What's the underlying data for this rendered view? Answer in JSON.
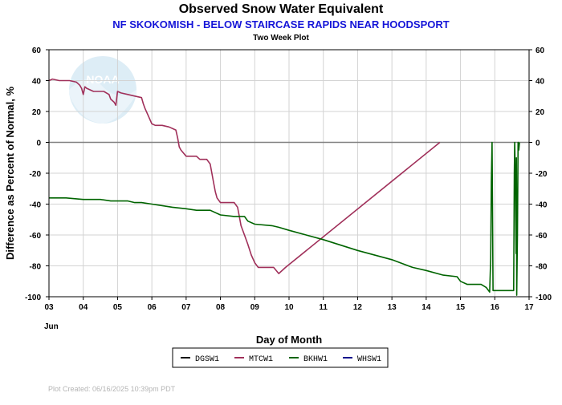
{
  "chart_data": {
    "type": "line",
    "title": "Observed Snow Water Equivalent",
    "subtitle": "NF SKOKOMISH - BELOW STAIRCASE RAPIDS NEAR HOODSPORT",
    "subsubtitle": "Two Week Plot",
    "xlabel": "Day of Month",
    "ylabel": "Difference as Percent of Normal, %",
    "x_month_label": "Jun",
    "xlim": [
      3,
      17
    ],
    "ylim": [
      -100,
      60
    ],
    "x_ticks": [
      "03",
      "04",
      "05",
      "06",
      "07",
      "08",
      "09",
      "10",
      "11",
      "12",
      "13",
      "14",
      "15",
      "16",
      "17"
    ],
    "y_ticks": [
      "60",
      "40",
      "20",
      "0",
      "-20",
      "-40",
      "-60",
      "-80",
      "-100"
    ],
    "grid": true,
    "legend_position": "bottom",
    "footer": "Plot Created: 06/16/2025 10:39pm PDT",
    "watermark": "NOAA",
    "series": [
      {
        "name": "DGSW1",
        "color": "#000000",
        "points": []
      },
      {
        "name": "MTCW1",
        "color": "#a0305a",
        "points": [
          [
            3.0,
            40
          ],
          [
            3.1,
            41
          ],
          [
            3.3,
            40
          ],
          [
            3.6,
            40
          ],
          [
            3.8,
            39
          ],
          [
            3.9,
            37
          ],
          [
            3.95,
            35
          ],
          [
            4.0,
            31
          ],
          [
            4.05,
            36
          ],
          [
            4.1,
            35
          ],
          [
            4.3,
            33
          ],
          [
            4.6,
            33
          ],
          [
            4.75,
            31
          ],
          [
            4.8,
            28
          ],
          [
            4.9,
            26
          ],
          [
            4.95,
            24
          ],
          [
            5.0,
            33
          ],
          [
            5.1,
            32
          ],
          [
            5.3,
            31
          ],
          [
            5.5,
            30
          ],
          [
            5.7,
            29
          ],
          [
            5.75,
            25
          ],
          [
            5.8,
            22
          ],
          [
            5.9,
            17
          ],
          [
            6.0,
            12
          ],
          [
            6.1,
            11
          ],
          [
            6.3,
            11
          ],
          [
            6.5,
            10
          ],
          [
            6.7,
            8
          ],
          [
            6.75,
            3
          ],
          [
            6.8,
            -3
          ],
          [
            6.85,
            -5
          ],
          [
            7.0,
            -9
          ],
          [
            7.3,
            -9
          ],
          [
            7.4,
            -11
          ],
          [
            7.6,
            -11
          ],
          [
            7.7,
            -14
          ],
          [
            7.75,
            -20
          ],
          [
            7.8,
            -26
          ],
          [
            7.85,
            -32
          ],
          [
            7.9,
            -36
          ],
          [
            8.0,
            -39
          ],
          [
            8.2,
            -39
          ],
          [
            8.4,
            -39
          ],
          [
            8.5,
            -42
          ],
          [
            8.55,
            -48
          ],
          [
            8.6,
            -54
          ],
          [
            8.7,
            -60
          ],
          [
            8.8,
            -66
          ],
          [
            8.9,
            -73
          ],
          [
            9.0,
            -78
          ],
          [
            9.1,
            -81
          ],
          [
            9.3,
            -81
          ],
          [
            9.55,
            -81
          ],
          [
            9.7,
            -85
          ],
          [
            9.9,
            -81
          ],
          [
            14.4,
            0
          ]
        ]
      },
      {
        "name": "BKHW1",
        "color": "#006400",
        "points": [
          [
            3.0,
            -36
          ],
          [
            3.5,
            -36
          ],
          [
            4.0,
            -37
          ],
          [
            4.5,
            -37
          ],
          [
            4.8,
            -38
          ],
          [
            5.0,
            -38
          ],
          [
            5.3,
            -38
          ],
          [
            5.5,
            -39
          ],
          [
            5.7,
            -39
          ],
          [
            6.0,
            -40
          ],
          [
            6.3,
            -41
          ],
          [
            6.6,
            -42
          ],
          [
            7.0,
            -43
          ],
          [
            7.3,
            -44
          ],
          [
            7.7,
            -44
          ],
          [
            8.0,
            -47
          ],
          [
            8.4,
            -48
          ],
          [
            8.7,
            -48
          ],
          [
            8.8,
            -51
          ],
          [
            9.0,
            -53
          ],
          [
            9.5,
            -54
          ],
          [
            9.7,
            -55
          ],
          [
            10.0,
            -57
          ],
          [
            11.0,
            -63
          ],
          [
            12.0,
            -70
          ],
          [
            13.0,
            -76
          ],
          [
            13.6,
            -81
          ],
          [
            14.0,
            -83
          ],
          [
            14.5,
            -86
          ],
          [
            14.9,
            -87
          ],
          [
            15.0,
            -90
          ],
          [
            15.2,
            -92
          ],
          [
            15.6,
            -92
          ],
          [
            15.75,
            -94
          ],
          [
            15.85,
            -97
          ],
          [
            15.88,
            -75
          ],
          [
            15.9,
            -25
          ],
          [
            15.92,
            0
          ],
          [
            15.95,
            -96
          ],
          [
            16.2,
            -96
          ],
          [
            16.55,
            -96
          ],
          [
            16.57,
            -20
          ],
          [
            16.58,
            0
          ],
          [
            16.6,
            -25
          ],
          [
            16.62,
            -72
          ],
          [
            16.63,
            -10
          ],
          [
            16.64,
            -99
          ],
          [
            16.66,
            -60
          ],
          [
            16.68,
            0
          ],
          [
            16.7,
            -5
          ],
          [
            16.72,
            0
          ]
        ]
      },
      {
        "name": "WHSW1",
        "color": "#00008b",
        "points": []
      }
    ]
  }
}
